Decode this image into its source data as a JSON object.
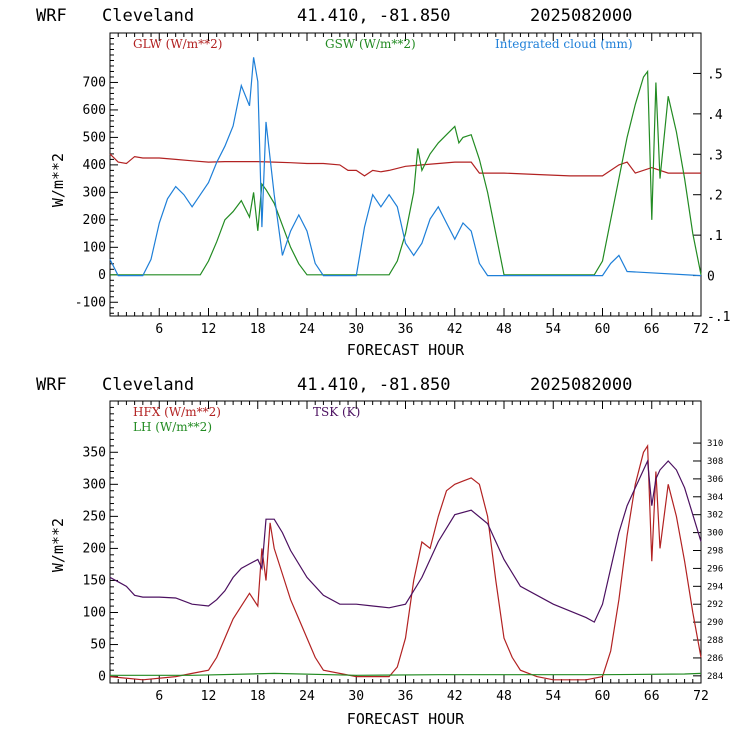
{
  "chart_data": [
    {
      "type": "line",
      "header": {
        "model": "WRF",
        "city": "Cleveland",
        "coords": "41.410, -81.850",
        "run": "2025082000"
      },
      "xlabel": "FORECAST HOUR",
      "ylabel": "W/m**2",
      "xlim": [
        0,
        72
      ],
      "ylim": [
        -150,
        880
      ],
      "y2lim": [
        -0.1,
        0.6
      ],
      "x_ticks": [
        6,
        12,
        18,
        24,
        30,
        36,
        42,
        48,
        54,
        60,
        66,
        72
      ],
      "y_ticks": [
        -100,
        0,
        100,
        200,
        300,
        400,
        500,
        600,
        700
      ],
      "y2_ticks": [
        ".5",
        ".4",
        ".3",
        ".2",
        ".1",
        "0",
        "-.1"
      ],
      "y2_values": [
        0.5,
        0.4,
        0.3,
        0.2,
        0.1,
        0,
        -0.1
      ],
      "legend": [
        {
          "label": "GLW (W/m**2)",
          "color": "#b22222"
        },
        {
          "label": "GSW (W/m**2)",
          "color": "#228b22"
        },
        {
          "label": "Integrated cloud (mm)",
          "color": "#1e7fd8"
        }
      ],
      "series": [
        {
          "name": "GLW (W/m**2)",
          "color": "#b22222",
          "axis": "left",
          "x": [
            0,
            1,
            2,
            3,
            4,
            5,
            6,
            8,
            10,
            12,
            14,
            16,
            18,
            20,
            22,
            24,
            26,
            28,
            29,
            30,
            31,
            32,
            33,
            34,
            36,
            38,
            40,
            42,
            44,
            45,
            48,
            52,
            56,
            60,
            62,
            63,
            64,
            66,
            68,
            70,
            72
          ],
          "y": [
            440,
            410,
            405,
            430,
            425,
            425,
            425,
            420,
            415,
            410,
            412,
            412,
            412,
            410,
            408,
            405,
            405,
            400,
            380,
            380,
            360,
            380,
            375,
            380,
            395,
            400,
            405,
            410,
            410,
            370,
            370,
            365,
            360,
            360,
            400,
            410,
            370,
            390,
            370,
            370,
            370
          ]
        },
        {
          "name": "GSW (W/m**2)",
          "color": "#228b22",
          "axis": "left",
          "x": [
            0,
            11,
            12,
            13,
            14,
            15,
            16,
            17,
            17.5,
            18,
            18.5,
            19,
            20,
            21,
            22,
            23,
            24,
            25,
            26,
            34,
            35,
            36,
            37,
            37.5,
            38,
            39,
            40,
            41,
            42,
            42.5,
            43,
            44,
            45,
            46,
            47,
            48,
            59,
            60,
            61,
            62,
            63,
            64,
            65,
            65.5,
            66,
            66.5,
            67,
            68,
            69,
            70,
            71,
            72
          ],
          "y": [
            0,
            0,
            50,
            120,
            200,
            230,
            270,
            210,
            300,
            160,
            330,
            310,
            260,
            180,
            100,
            40,
            0,
            0,
            0,
            0,
            50,
            150,
            300,
            460,
            380,
            440,
            480,
            510,
            540,
            480,
            500,
            510,
            420,
            300,
            150,
            0,
            0,
            50,
            200,
            350,
            500,
            620,
            720,
            740,
            200,
            700,
            350,
            650,
            520,
            350,
            150,
            0
          ]
        },
        {
          "name": "Integrated cloud (mm)",
          "color": "#1e7fd8",
          "axis": "right",
          "x": [
            0,
            1,
            2,
            3,
            4,
            5,
            6,
            7,
            8,
            9,
            10,
            11,
            12,
            13,
            14,
            15,
            16,
            17,
            17.5,
            18,
            18.5,
            19,
            20,
            21,
            22,
            23,
            24,
            25,
            26,
            30,
            31,
            32,
            33,
            34,
            35,
            36,
            37,
            38,
            39,
            40,
            41,
            42,
            43,
            44,
            45,
            46,
            60,
            61,
            62,
            63,
            72
          ],
          "y": [
            0.04,
            0,
            0,
            0,
            0,
            0.04,
            0.13,
            0.19,
            0.22,
            0.2,
            0.17,
            0.2,
            0.23,
            0.28,
            0.32,
            0.37,
            0.47,
            0.42,
            0.54,
            0.48,
            0.12,
            0.38,
            0.2,
            0.05,
            0.11,
            0.15,
            0.11,
            0.03,
            0,
            0,
            0.12,
            0.2,
            0.17,
            0.2,
            0.17,
            0.08,
            0.05,
            0.08,
            0.14,
            0.17,
            0.13,
            0.09,
            0.13,
            0.11,
            0.03,
            0,
            0,
            0.03,
            0.05,
            0.01,
            0
          ]
        }
      ]
    },
    {
      "type": "line",
      "header": {
        "model": "WRF",
        "city": "Cleveland",
        "coords": "41.410, -81.850",
        "run": "2025082000"
      },
      "xlabel": "FORECAST HOUR",
      "ylabel": "W/m**2",
      "xlim": [
        0,
        72
      ],
      "ylim": [
        -10,
        430
      ],
      "y2lim": [
        283.2,
        314.7
      ],
      "x_ticks": [
        6,
        12,
        18,
        24,
        30,
        36,
        42,
        48,
        54,
        60,
        66,
        72
      ],
      "y_ticks": [
        0,
        50,
        100,
        150,
        200,
        250,
        300,
        350
      ],
      "y2_ticks": [
        "310",
        "308",
        "306",
        "304",
        "302",
        "300",
        "298",
        "296",
        "294",
        "292",
        "290",
        "288",
        "286",
        "284"
      ],
      "y2_values": [
        310,
        308,
        306,
        304,
        302,
        300,
        298,
        296,
        294,
        292,
        290,
        288,
        286,
        284
      ],
      "legend": [
        {
          "label": "HFX (W/m**2)",
          "color": "#b22222"
        },
        {
          "label": "LH  (W/m**2)",
          "color": "#228b22"
        },
        {
          "label": "TSK (K)",
          "color": "#4b1060"
        }
      ],
      "series": [
        {
          "name": "HFX (W/m**2)",
          "color": "#b22222",
          "axis": "left",
          "x": [
            0,
            4,
            8,
            10,
            12,
            13,
            14,
            15,
            16,
            17,
            18,
            18.5,
            19,
            19.5,
            20,
            21,
            22,
            23,
            24,
            25,
            26,
            30,
            34,
            35,
            36,
            37,
            38,
            39,
            40,
            41,
            42,
            43,
            44,
            45,
            46,
            47,
            48,
            49,
            50,
            52,
            54,
            58,
            60,
            61,
            62,
            63,
            64,
            65,
            65.5,
            66,
            66.5,
            67,
            68,
            69,
            70,
            71,
            72
          ],
          "y": [
            0,
            -5,
            0,
            5,
            10,
            30,
            60,
            90,
            110,
            130,
            110,
            200,
            150,
            240,
            200,
            160,
            120,
            90,
            60,
            30,
            10,
            0,
            0,
            15,
            60,
            150,
            210,
            200,
            250,
            290,
            300,
            305,
            310,
            300,
            250,
            150,
            60,
            30,
            10,
            0,
            -5,
            -5,
            0,
            40,
            120,
            220,
            300,
            350,
            360,
            180,
            320,
            200,
            300,
            250,
            180,
            100,
            30
          ]
        },
        {
          "name": "LH  (W/m**2)",
          "color": "#228b22",
          "axis": "left",
          "x": [
            0,
            10,
            20,
            30,
            40,
            50,
            60,
            70,
            72
          ],
          "y": [
            2,
            2,
            5,
            2,
            3,
            3,
            3,
            4,
            5
          ]
        },
        {
          "name": "TSK (K)",
          "color": "#4b1060",
          "axis": "right",
          "x": [
            0,
            1,
            2,
            3,
            4,
            6,
            8,
            10,
            12,
            13,
            14,
            15,
            16,
            17,
            18,
            18.5,
            19,
            20,
            21,
            22,
            24,
            26,
            28,
            30,
            32,
            34,
            36,
            38,
            40,
            42,
            44,
            46,
            47,
            48,
            50,
            54,
            58,
            59,
            60,
            61,
            62,
            63,
            64,
            65,
            65.5,
            66,
            66.5,
            67,
            68,
            69,
            70,
            71,
            72
          ],
          "y": [
            295,
            294.5,
            294,
            293,
            292.8,
            292.8,
            292.7,
            292,
            291.8,
            292.5,
            293.5,
            295,
            296,
            296.5,
            297,
            296,
            301.5,
            301.5,
            300,
            298,
            295,
            293,
            292,
            292,
            291.8,
            291.6,
            292,
            295,
            299,
            302,
            302.5,
            301,
            299,
            297,
            294,
            292,
            290.5,
            290,
            292,
            296,
            300,
            303,
            305,
            307,
            308,
            303,
            306,
            307,
            308,
            307,
            305,
            302,
            299
          ]
        }
      ]
    }
  ]
}
